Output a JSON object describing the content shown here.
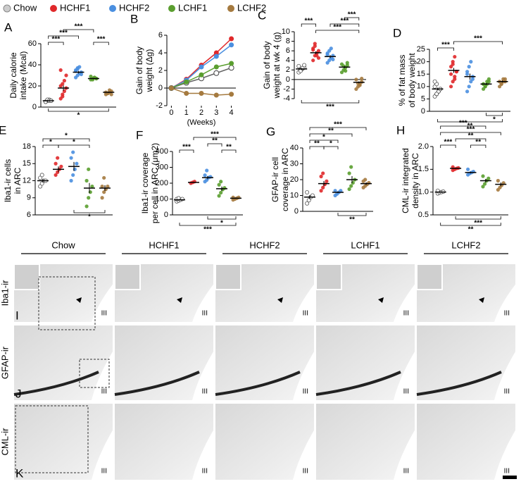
{
  "groups": [
    {
      "name": "Chow",
      "color": "#ffffff"
    },
    {
      "name": "HCHF1",
      "color": "#e0282a"
    },
    {
      "name": "HCHF2",
      "color": "#4a8fe0"
    },
    {
      "name": "LCHF1",
      "color": "#5a9e2f"
    },
    {
      "name": "LCHF2",
      "color": "#a57a3f"
    }
  ],
  "chart_data": [
    {
      "type": "dot",
      "panel": "A",
      "ylabel": [
        "Daily calorie",
        "intake (Mcal)"
      ],
      "ylim": [
        0,
        60
      ],
      "yticks": [
        0,
        20,
        40,
        60
      ],
      "series": [
        {
          "mean": 6,
          "sem": 0.3,
          "points": [
            5,
            6,
            7,
            6,
            5,
            7,
            6,
            6
          ]
        },
        {
          "mean": 18,
          "sem": 2.5,
          "points": [
            8,
            12,
            15,
            18,
            20,
            22,
            25,
            30,
            35,
            10
          ]
        },
        {
          "mean": 33,
          "sem": 1.2,
          "points": [
            28,
            30,
            32,
            33,
            35,
            36,
            38,
            31,
            34,
            37
          ]
        },
        {
          "mean": 27,
          "sem": 0.5,
          "points": [
            26,
            27,
            28,
            27,
            29,
            26,
            28,
            27
          ]
        },
        {
          "mean": 14,
          "sem": 0.5,
          "points": [
            12,
            13,
            14,
            15,
            14,
            13,
            16,
            12
          ]
        }
      ],
      "significance": [
        "***",
        "***",
        "***",
        "***",
        "*"
      ]
    },
    {
      "type": "line",
      "panel": "B",
      "ylabel": [
        "Gain of body",
        "weight (Δg)"
      ],
      "xlabel": "(Weeks)",
      "x": [
        0,
        1,
        2,
        3,
        4
      ],
      "xlim": [
        -0.3,
        4.3
      ],
      "xticks": [
        0,
        1,
        2,
        3,
        4
      ],
      "ylim": [
        -2,
        6
      ],
      "yticks": [
        -2,
        0,
        2,
        4,
        6
      ],
      "series": [
        {
          "values": [
            0,
            0.6,
            1.1,
            1.7,
            2.3
          ]
        },
        {
          "values": [
            0,
            1.0,
            2.6,
            4.0,
            5.6
          ]
        },
        {
          "values": [
            0,
            0.9,
            2.4,
            3.6,
            4.9
          ]
        },
        {
          "values": [
            0,
            0.7,
            1.5,
            2.4,
            2.8
          ]
        },
        {
          "values": [
            0,
            -0.6,
            -0.6,
            -0.8,
            -0.7
          ]
        }
      ]
    },
    {
      "type": "dot",
      "panel": "C",
      "ylabel": [
        "Gain of body",
        "weight at wk 4 (g)"
      ],
      "ylim": [
        -4,
        10
      ],
      "yticks": [
        -4,
        -2,
        0,
        2,
        4,
        6,
        8,
        10
      ],
      "series": [
        {
          "mean": 2.2,
          "sem": 0.2,
          "points": [
            1.5,
            2,
            2.2,
            2.5,
            2.8,
            1.8,
            2.4,
            3
          ]
        },
        {
          "mean": 5.6,
          "sem": 0.3,
          "points": [
            4,
            5,
            5.5,
            6,
            6.5,
            7,
            5,
            4.5,
            6.2,
            7.5
          ]
        },
        {
          "mean": 4.8,
          "sem": 0.3,
          "points": [
            3.5,
            4,
            4.5,
            5,
            5.5,
            6,
            6.5,
            4.2,
            5.2
          ]
        },
        {
          "mean": 2.6,
          "sem": 0.2,
          "points": [
            1.5,
            2,
            2.5,
            3,
            3.2,
            2.8,
            1.8,
            3.5
          ]
        },
        {
          "mean": -0.6,
          "sem": 0.2,
          "points": [
            -2,
            -1.5,
            -1,
            -0.5,
            0,
            -0.8,
            -1.2,
            0.2
          ]
        }
      ],
      "significance": [
        "***",
        "***",
        "***",
        "***",
        "***"
      ]
    },
    {
      "type": "dot",
      "panel": "D",
      "ylabel": [
        "% of fat mass",
        "of body weight"
      ],
      "ylim": [
        0,
        25
      ],
      "yticks": [
        0,
        5,
        10,
        15,
        20,
        25
      ],
      "series": [
        {
          "mean": 9,
          "sem": 0.5,
          "points": [
            6,
            7,
            8,
            9,
            10,
            11,
            8,
            9,
            12,
            7
          ]
        },
        {
          "mean": 16.5,
          "sem": 1,
          "points": [
            10,
            12,
            14,
            16,
            18,
            20,
            22,
            16,
            15,
            19,
            13
          ]
        },
        {
          "mean": 14,
          "sem": 1.2,
          "points": [
            8,
            10,
            12,
            14,
            16,
            18,
            20,
            13,
            15
          ]
        },
        {
          "mean": 11,
          "sem": 0.4,
          "points": [
            9,
            10,
            11,
            12,
            11,
            10,
            12,
            13,
            11
          ]
        },
        {
          "mean": 12,
          "sem": 0.4,
          "points": [
            10,
            11,
            12,
            13,
            12,
            11,
            13,
            12
          ]
        }
      ],
      "significance": [
        "***",
        "***",
        "*",
        "**"
      ]
    },
    {
      "type": "dot",
      "panel": "E",
      "ylabel": [
        "Iba1-ir cells",
        "in ARC"
      ],
      "ylim": [
        6,
        18
      ],
      "yticks": [
        6,
        9,
        12,
        15,
        18
      ],
      "series": [
        {
          "mean": 12,
          "sem": 0.3,
          "points": [
            11,
            11.5,
            12,
            12,
            12.5,
            13
          ]
        },
        {
          "mean": 14,
          "sem": 0.5,
          "points": [
            13,
            13.5,
            14,
            14.5,
            15,
            16
          ]
        },
        {
          "mean": 14.5,
          "sem": 0.8,
          "points": [
            12,
            13,
            14,
            15,
            16,
            17
          ]
        },
        {
          "mean": 10.7,
          "sem": 0.9,
          "points": [
            7.5,
            9,
            10,
            11,
            12,
            14
          ]
        },
        {
          "mean": 10.7,
          "sem": 0.5,
          "points": [
            9,
            10,
            10.5,
            11,
            11,
            12.5
          ]
        }
      ],
      "significance": [
        "*",
        "*",
        "*",
        "*"
      ]
    },
    {
      "type": "dot",
      "panel": "F",
      "ylabel": [
        "Iba1-ir coverage",
        "per cell in ARC (μm2)"
      ],
      "ylim": [
        0,
        400
      ],
      "yticks": [
        0,
        100,
        200,
        300,
        400
      ],
      "series": [
        {
          "mean": 95,
          "sem": 4,
          "points": [
            85,
            90,
            95,
            100,
            100,
            105
          ]
        },
        {
          "mean": 205,
          "sem": 3,
          "points": [
            200,
            205,
            210
          ]
        },
        {
          "mean": 235,
          "sem": 10,
          "points": [
            210,
            220,
            235,
            240,
            250,
            280
          ]
        },
        {
          "mean": 165,
          "sem": 14,
          "points": [
            120,
            140,
            160,
            170,
            190,
            210
          ]
        },
        {
          "mean": 105,
          "sem": 3,
          "points": [
            95,
            100,
            105,
            110,
            110
          ]
        }
      ],
      "significance": [
        "***",
        "***",
        "**",
        "**",
        "*",
        "***"
      ]
    },
    {
      "type": "dot",
      "panel": "G",
      "ylabel": [
        "GFAP-ir cell",
        "coverage in ARC"
      ],
      "ylim": [
        0,
        40
      ],
      "yticks": [
        0,
        10,
        20,
        30,
        40
      ],
      "series": [
        {
          "mean": 9,
          "sem": 1.2,
          "points": [
            5,
            7,
            9,
            10,
            12
          ]
        },
        {
          "mean": 17.5,
          "sem": 1.6,
          "points": [
            13,
            15,
            17,
            19,
            22,
            24
          ]
        },
        {
          "mean": 12,
          "sem": 0.5,
          "points": [
            10,
            11,
            12,
            13,
            13
          ]
        },
        {
          "mean": 20,
          "sem": 2.2,
          "points": [
            14,
            16,
            18,
            20,
            24,
            28
          ]
        },
        {
          "mean": 17.5,
          "sem": 0.8,
          "points": [
            15,
            16,
            17,
            18,
            19,
            20
          ]
        }
      ],
      "significance": [
        "***",
        "**",
        "*",
        "**",
        "*",
        "**"
      ]
    },
    {
      "type": "dot",
      "panel": "H",
      "ylabel": [
        "CML-ir integrated",
        "density in ARC"
      ],
      "ylim": [
        0.5,
        2.0
      ],
      "yticks": [
        0.5,
        {
          "value": 1.0,
          "label": "1.0"
        },
        1.5,
        {
          "value": 2.0,
          "label": "2.0"
        }
      ],
      "series": [
        {
          "mean": 1.0,
          "sem": 0.01,
          "points": [
            0.97,
            0.99,
            1.0,
            1.01,
            1.03
          ]
        },
        {
          "mean": 1.52,
          "sem": 0.01,
          "points": [
            1.48,
            1.5,
            1.52,
            1.53,
            1.55
          ]
        },
        {
          "mean": 1.43,
          "sem": 0.02,
          "points": [
            1.38,
            1.41,
            1.43,
            1.45,
            1.5
          ]
        },
        {
          "mean": 1.25,
          "sem": 0.04,
          "points": [
            1.12,
            1.18,
            1.25,
            1.3,
            1.35
          ]
        },
        {
          "mean": 1.17,
          "sem": 0.04,
          "points": [
            1.05,
            1.1,
            1.15,
            1.2,
            1.25
          ]
        }
      ],
      "significance": [
        "***",
        "***",
        "**",
        "***",
        "**",
        "***",
        "**"
      ]
    }
  ],
  "micrographs": {
    "columns": [
      "Chow",
      "HCHF1",
      "HCHF2",
      "LCHF1",
      "LCHF2"
    ],
    "rows": [
      {
        "panel": "I",
        "label": "Iba1-ir"
      },
      {
        "panel": "J",
        "label": "GFAP-ir"
      },
      {
        "panel": "K",
        "label": "CML-ir"
      }
    ],
    "marker": "III"
  }
}
